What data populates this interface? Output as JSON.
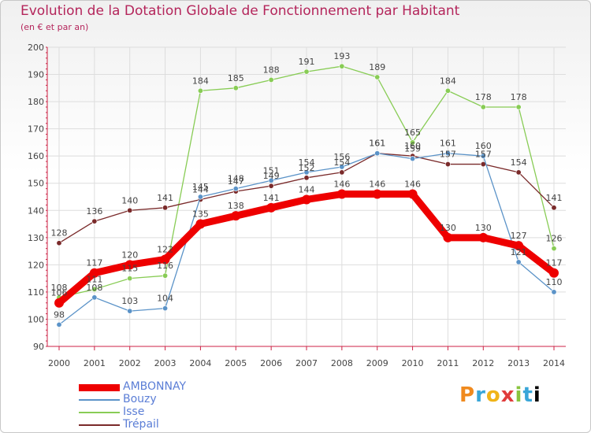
{
  "title": "Evolution de la Dotation Globale de Fonctionnement par Habitant",
  "subtitle": "(en € et par an)",
  "logo_text": "Proxiti",
  "colors": {
    "title": "#b4255b",
    "axis": "#cc2244",
    "grid": "#dddddd",
    "labels": "#444444"
  },
  "chart_data": {
    "type": "line",
    "title": "Evolution de la Dotation Globale de Fonctionnement par Habitant",
    "subtitle": "(en € et par an)",
    "xlabel": "",
    "ylabel": "",
    "ylim": [
      90,
      200
    ],
    "yticks": [
      90,
      100,
      110,
      120,
      130,
      140,
      150,
      160,
      170,
      180,
      190,
      200
    ],
    "grid": true,
    "legend_position": "bottom-left",
    "categories": [
      "2000",
      "2001",
      "2002",
      "2003",
      "2004",
      "2005",
      "2006",
      "2007",
      "2008",
      "2009",
      "2010",
      "2011",
      "2012",
      "2013",
      "2014"
    ],
    "series": [
      {
        "name": "AMBONNAY",
        "color": "#ee0000",
        "width": "thick",
        "values": [
          106,
          117,
          120,
          122,
          135,
          138,
          141,
          144,
          146,
          146,
          146,
          130,
          130,
          127,
          117
        ]
      },
      {
        "name": "Bouzy",
        "color": "#5b93c8",
        "width": "thin",
        "values": [
          98,
          108,
          103,
          104,
          145,
          148,
          151,
          154,
          156,
          161,
          159,
          161,
          160,
          121,
          110
        ]
      },
      {
        "name": "Isse",
        "color": "#88cc55",
        "width": "thin",
        "values": [
          108,
          111,
          115,
          116,
          184,
          185,
          188,
          191,
          193,
          189,
          165,
          184,
          178,
          178,
          126
        ]
      },
      {
        "name": "Trépail",
        "color": "#7a2a2a",
        "width": "thin",
        "values": [
          128,
          136,
          140,
          141,
          144,
          147,
          149,
          152,
          154,
          161,
          160,
          157,
          157,
          154,
          141
        ]
      }
    ]
  }
}
